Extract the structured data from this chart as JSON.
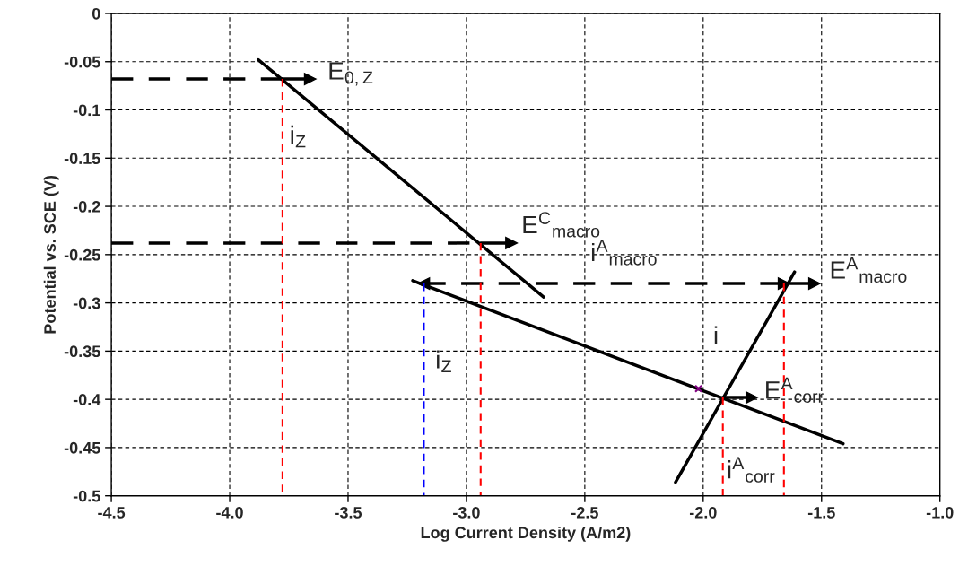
{
  "chart_data": {
    "type": "line",
    "xlabel": "Log Current Density (A/m2)",
    "ylabel": "Potential vs. SCE (V)",
    "xlim": [
      -4.5,
      -1.0
    ],
    "ylim": [
      -0.5,
      0
    ],
    "xticks": [
      -4.5,
      {
        "value": -4.0,
        "label": "-4.0"
      },
      -3.5,
      {
        "value": -3.0,
        "label": "-3.0"
      },
      -2.5,
      {
        "value": -2.0,
        "label": "-2.0"
      },
      -1.5,
      {
        "value": -1.0,
        "label": "-1.0"
      }
    ],
    "yticks": [
      -0.5,
      -0.45,
      -0.4,
      -0.35,
      -0.3,
      -0.25,
      -0.2,
      -0.15,
      -0.1,
      -0.05,
      0
    ],
    "grid": true,
    "series": [
      {
        "x": [
          -3.879,
          -2.674
        ],
        "values": [
          -0.048,
          -0.294
        ],
        "color": "#000000",
        "line_style": "solid"
      },
      {
        "x": [
          -3.227,
          -1.409
        ],
        "values": [
          -0.277,
          -0.446
        ],
        "color": "#000000",
        "line_style": "solid"
      },
      {
        "x": [
          -2.117,
          -1.614
        ],
        "values": [
          -0.486,
          -0.268
        ],
        "color": "#000000",
        "line_style": "solid"
      },
      {
        "x": [
          -4.5,
          -3.777
        ],
        "values": [
          -0.068,
          -0.068
        ],
        "color": "#000000",
        "line_style": "dashed"
      },
      {
        "x": [
          -3.777,
          -3.66
        ],
        "values": [
          -0.068,
          -0.068
        ],
        "color": "#000000",
        "line_style": "solid",
        "marker": "triangle"
      },
      {
        "x": [
          -4.5,
          -2.94
        ],
        "values": [
          -0.238,
          -0.238
        ],
        "color": "#000000",
        "line_style": "dashed"
      },
      {
        "x": [
          -2.94,
          -2.81
        ],
        "values": [
          -0.238,
          -0.238
        ],
        "color": "#000000",
        "line_style": "solid",
        "marker": "triangle"
      },
      {
        "x": [
          -3.18,
          -1.659
        ],
        "values": [
          -0.28,
          -0.28
        ],
        "color": "#000000",
        "line_style": "dashed",
        "marker": "triangle"
      },
      {
        "x": [
          -1.659,
          -1.53
        ],
        "values": [
          -0.28,
          -0.28
        ],
        "color": "#000000",
        "line_style": "solid",
        "marker": "triangle"
      },
      {
        "x": [
          -1.917,
          -1.795
        ],
        "values": [
          -0.398,
          -0.398
        ],
        "color": "#000000",
        "line_style": "solid",
        "marker": "triangle"
      },
      {
        "x": [
          -3.777,
          -3.777
        ],
        "values": [
          -0.068,
          -0.5
        ],
        "color": "#ff0000",
        "line_style": "dashed"
      },
      {
        "x": [
          -2.94,
          -2.94
        ],
        "values": [
          -0.238,
          -0.5
        ],
        "color": "#ff0000",
        "line_style": "dashed"
      },
      {
        "x": [
          -1.917,
          -1.917
        ],
        "values": [
          -0.398,
          -0.5
        ],
        "color": "#ff0000",
        "line_style": "dashed"
      },
      {
        "x": [
          -1.659,
          -1.659
        ],
        "values": [
          -0.28,
          -0.5
        ],
        "color": "#ff0000",
        "line_style": "dashed"
      },
      {
        "x": [
          -3.18,
          -3.18
        ],
        "values": [
          -0.28,
          -0.5
        ],
        "color": "#0000ff",
        "line_style": "dashed"
      },
      {
        "type": "scatter",
        "x": [
          -2.02
        ],
        "values": [
          -0.389
        ],
        "color": "#800080",
        "marker": "cross"
      }
    ],
    "annotations": [
      {
        "text": "E$_{0,Z}$",
        "x": -3.66,
        "y": -0.068
      },
      {
        "text": "E$^{C}$$_{macro}$",
        "x": -2.81,
        "y": -0.238
      },
      {
        "text": "i$^{A}$$_{macro}$",
        "x": -2.45,
        "y": -0.28
      },
      {
        "text": "E$^{A}$$_{macro}$",
        "x": -1.53,
        "y": -0.28
      },
      {
        "text": "E$^{A}$$_{corr}$",
        "x": -1.795,
        "y": -0.398
      },
      {
        "text": "i$^{A}$$_{corr}$",
        "x": -1.917,
        "y": -0.5
      },
      {
        "text": "i$_{Z}$",
        "x": -3.6,
        "y": -0.105
      },
      {
        "text": "i$_{Z}$",
        "x": -3.0,
        "y": -0.298
      },
      {
        "text": "i",
        "x": -1.8,
        "y": -0.349
      }
    ]
  }
}
